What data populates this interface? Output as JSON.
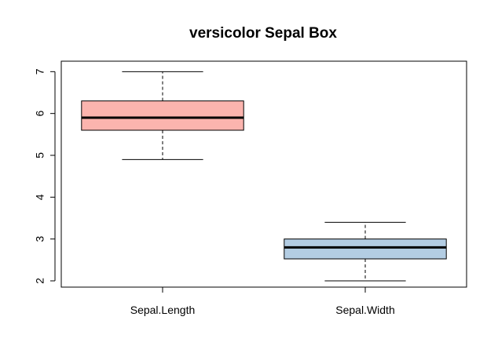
{
  "chart_data": {
    "type": "box",
    "title": "versicolor Sepal Box",
    "xlabel": "",
    "ylabel": "",
    "ylim": [
      1.85,
      7.25
    ],
    "yticks": [
      "2",
      "3",
      "4",
      "5",
      "6",
      "7"
    ],
    "grid": false,
    "categories": [
      "Sepal.Length",
      "Sepal.Width"
    ],
    "boxes": [
      {
        "category": "Sepal.Length",
        "min": 4.9,
        "q1": 5.6,
        "median": 5.9,
        "q3": 6.3,
        "max": 7.0,
        "color": "#FBB4AE"
      },
      {
        "category": "Sepal.Width",
        "min": 2.0,
        "q1": 2.525,
        "median": 2.8,
        "q3": 3.0,
        "max": 3.4,
        "color": "#B3CDE3"
      }
    ]
  }
}
